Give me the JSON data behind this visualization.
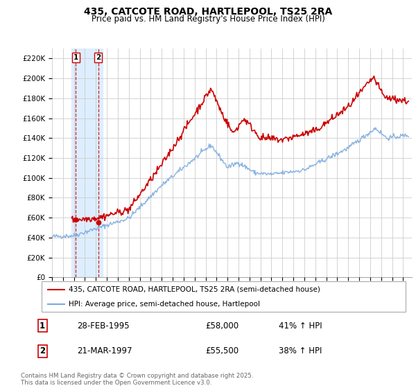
{
  "title": "435, CATCOTE ROAD, HARTLEPOOL, TS25 2RA",
  "subtitle": "Price paid vs. HM Land Registry's House Price Index (HPI)",
  "legend_entry1": "435, CATCOTE ROAD, HARTLEPOOL, TS25 2RA (semi-detached house)",
  "legend_entry2": "HPI: Average price, semi-detached house, Hartlepool",
  "footer": "Contains HM Land Registry data © Crown copyright and database right 2025.\nThis data is licensed under the Open Government Licence v3.0.",
  "transaction1_date": "28-FEB-1995",
  "transaction1_price": "£58,000",
  "transaction1_hpi": "41% ↑ HPI",
  "transaction1_x": 1995.163,
  "transaction1_y": 58000,
  "transaction2_date": "21-MAR-1997",
  "transaction2_price": "£55,500",
  "transaction2_hpi": "38% ↑ HPI",
  "transaction2_x": 1997.22,
  "transaction2_y": 55500,
  "red_color": "#cc0000",
  "blue_color": "#7aaadd",
  "shaded_region_color": "#ddeeff",
  "grid_color": "#cccccc",
  "ylim": [
    0,
    230000
  ],
  "xlim": [
    1993.0,
    2025.8
  ],
  "yticks": [
    0,
    20000,
    40000,
    60000,
    80000,
    100000,
    120000,
    140000,
    160000,
    180000,
    200000,
    220000
  ],
  "ytick_labels": [
    "£0",
    "£20K",
    "£40K",
    "£60K",
    "£80K",
    "£100K",
    "£120K",
    "£140K",
    "£160K",
    "£180K",
    "£200K",
    "£220K"
  ]
}
